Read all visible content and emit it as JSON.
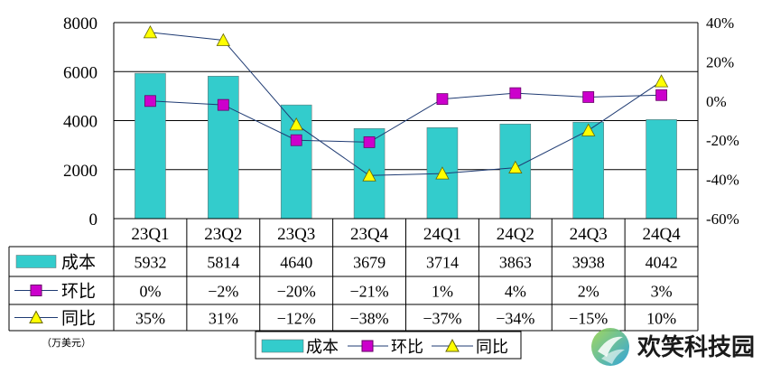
{
  "chart_data": {
    "type": "bar",
    "categories": [
      "23Q1",
      "23Q2",
      "23Q3",
      "23Q4",
      "24Q1",
      "24Q2",
      "24Q3",
      "24Q4"
    ],
    "series": [
      {
        "name": "成本",
        "axis": "left",
        "type": "bar",
        "values": [
          5932,
          5814,
          4640,
          3679,
          3714,
          3863,
          3938,
          4042
        ],
        "color": "#33CCCC"
      },
      {
        "name": "环比",
        "axis": "right",
        "type": "line",
        "values": [
          0,
          -2,
          -20,
          -21,
          1,
          4,
          2,
          3
        ],
        "color": "#CC00CC"
      },
      {
        "name": "同比",
        "axis": "right",
        "type": "line",
        "values": [
          35,
          31,
          -12,
          -38,
          -37,
          -34,
          -15,
          10
        ],
        "color": "#FFFF00"
      }
    ],
    "left_axis": {
      "min": 0,
      "max": 8000,
      "ticks": [
        0,
        2000,
        4000,
        6000,
        8000
      ]
    },
    "right_axis": {
      "min": -60,
      "max": 40,
      "ticks": [
        "-60%",
        "-40%",
        "-20%",
        "0%",
        "20%",
        "40%"
      ]
    },
    "grid": true,
    "legend_position": "bottom",
    "line_color": "#1F3B73"
  },
  "table": {
    "rows": [
      {
        "label": "成本",
        "cells": [
          "5932",
          "5814",
          "4640",
          "3679",
          "3714",
          "3863",
          "3938",
          "4042"
        ]
      },
      {
        "label": "环比",
        "cells": [
          "0%",
          "−2%",
          "−20%",
          "−21%",
          "1%",
          "4%",
          "2%",
          "3%"
        ]
      },
      {
        "label": "同比",
        "cells": [
          "35%",
          "31%",
          "−12%",
          "−38%",
          "−37%",
          "−34%",
          "−15%",
          "10%"
        ]
      }
    ]
  },
  "unit_label": "（万美元）",
  "legend": {
    "items": [
      "成本",
      "环比",
      "同比"
    ]
  },
  "brand": {
    "name": "欢笑科技园"
  }
}
